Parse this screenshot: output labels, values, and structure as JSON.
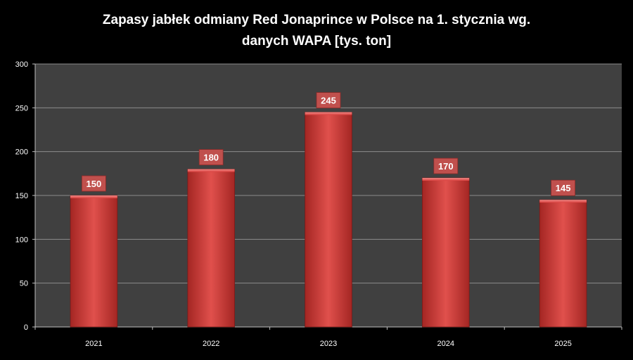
{
  "chart_data": {
    "type": "bar",
    "title_line1": "Zapasy jabłek odmiany Red Jonaprince w Polsce na 1. stycznia wg.",
    "title_line2": "danych WAPA [tys. ton]",
    "categories": [
      "2021",
      "2022",
      "2023",
      "2024",
      "2025"
    ],
    "values": [
      150,
      180,
      245,
      170,
      145
    ],
    "data_labels": [
      "150",
      "180",
      "245",
      "170",
      "145"
    ],
    "y_ticks": [
      "0",
      "50",
      "100",
      "150",
      "200",
      "250",
      "300"
    ],
    "ylim": [
      0,
      300
    ],
    "xlabel": "",
    "ylabel": "",
    "grid": true,
    "legend": "none",
    "colors": {
      "background": "#000000",
      "plot_area": "#404040",
      "bar": "#d9403e",
      "gridline": "#8c8c8c",
      "label_box": "#c0504d",
      "text": "#ffffff"
    }
  }
}
